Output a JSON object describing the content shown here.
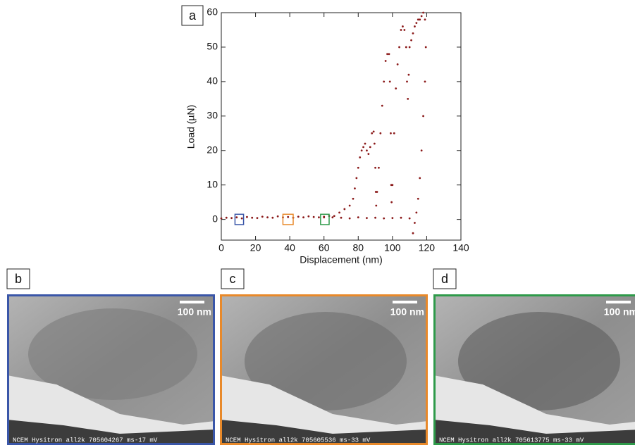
{
  "chart_data": {
    "type": "scatter",
    "label": "a",
    "xlabel": "Displacement (nm)",
    "ylabel": "Load (µN)",
    "xlim": [
      0,
      140
    ],
    "xticks": [
      0,
      20,
      40,
      60,
      80,
      100,
      120,
      140
    ],
    "ylim": [
      -6,
      60
    ],
    "yticks": [
      0,
      10,
      20,
      30,
      40,
      50,
      60
    ],
    "color": "#8b1a1a",
    "x": [
      0,
      3,
      6,
      9,
      12,
      15,
      18,
      21,
      24,
      27,
      30,
      33,
      36,
      39,
      42,
      45,
      48,
      51,
      54,
      57,
      60,
      63,
      66,
      69,
      72,
      75,
      77,
      78,
      79,
      80,
      81,
      82,
      83,
      84,
      85,
      86,
      87,
      88,
      89,
      89.5,
      90,
      90.3,
      90.5,
      91,
      92,
      93,
      94,
      95,
      96,
      97,
      98,
      98.5,
      99,
      99.3,
      99.5,
      100,
      101,
      102,
      103,
      104,
      105,
      106,
      107,
      108,
      108.5,
      109,
      109.5,
      110,
      111,
      112,
      113,
      114,
      115,
      116,
      117,
      118,
      119,
      119.5,
      119,
      118,
      117,
      116,
      115,
      114,
      113,
      112,
      110,
      105,
      100,
      95,
      90,
      85,
      80,
      75,
      70,
      65,
      60
    ],
    "values": [
      0.3,
      0.5,
      0.4,
      0.6,
      0.3,
      0.7,
      0.5,
      0.4,
      0.8,
      0.6,
      0.5,
      0.9,
      0.6,
      0.7,
      0.5,
      0.8,
      0.6,
      0.9,
      0.7,
      0.6,
      0.8,
      1.0,
      1,
      2,
      3,
      4,
      6,
      9,
      12,
      15,
      18,
      20,
      21,
      22,
      20,
      19,
      21,
      25,
      25.5,
      22,
      15,
      8,
      4,
      8,
      15,
      25,
      33,
      40,
      46,
      48,
      48,
      40,
      25,
      10,
      5,
      10,
      25,
      38,
      45,
      50,
      55,
      56,
      55,
      50,
      40,
      35,
      42,
      50,
      52,
      54,
      56,
      57,
      58,
      58,
      59,
      60,
      58,
      50,
      40,
      30,
      20,
      12,
      6,
      2,
      -1,
      -4,
      0.3,
      0.5,
      0.4,
      0.3,
      0.5,
      0.4,
      0.6,
      0.3,
      0.5,
      0.6,
      0.6
    ],
    "highlights": [
      {
        "x": [
          8,
          13
        ],
        "y": [
          -1.5,
          1.5
        ],
        "color": "#3a56a8"
      },
      {
        "x": [
          36,
          42
        ],
        "y": [
          -1.5,
          1.5
        ],
        "color": "#e8892a"
      },
      {
        "x": [
          58,
          63
        ],
        "y": [
          -1.5,
          1.5
        ],
        "color": "#2e9a4a"
      }
    ]
  },
  "panels": [
    {
      "label": "b",
      "scale_bar": "100 nm",
      "caption": "NCEM Hysitron all2k 705604267 ms-17 mV"
    },
    {
      "label": "c",
      "scale_bar": "100 nm",
      "caption": "NCEM Hysitron all2k 705605536 ms-33 mV"
    },
    {
      "label": "d",
      "scale_bar": "100 nm",
      "caption": "NCEM Hysitron all2k 705613775 ms-33 mV"
    }
  ]
}
